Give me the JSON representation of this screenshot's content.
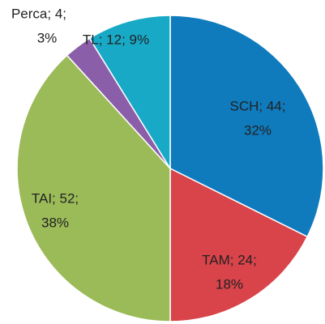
{
  "chart_data": {
    "type": "pie",
    "categories": [
      "SCH",
      "TAM",
      "TAI",
      "Perca",
      "TL"
    ],
    "values": [
      44,
      24,
      52,
      4,
      12
    ],
    "value_labels": [
      [
        "SCH; 44;",
        "32%"
      ],
      [
        "TAM; 24;",
        "18%"
      ],
      [
        "TAI; 52;",
        "38%"
      ],
      [
        "Perca; 4;",
        "3%"
      ],
      [
        "TL; 12; 9%"
      ]
    ],
    "colors": [
      "#0f7bbd",
      "#d9434a",
      "#9bbb59",
      "#8a5ea8",
      "#17a9c6"
    ]
  }
}
